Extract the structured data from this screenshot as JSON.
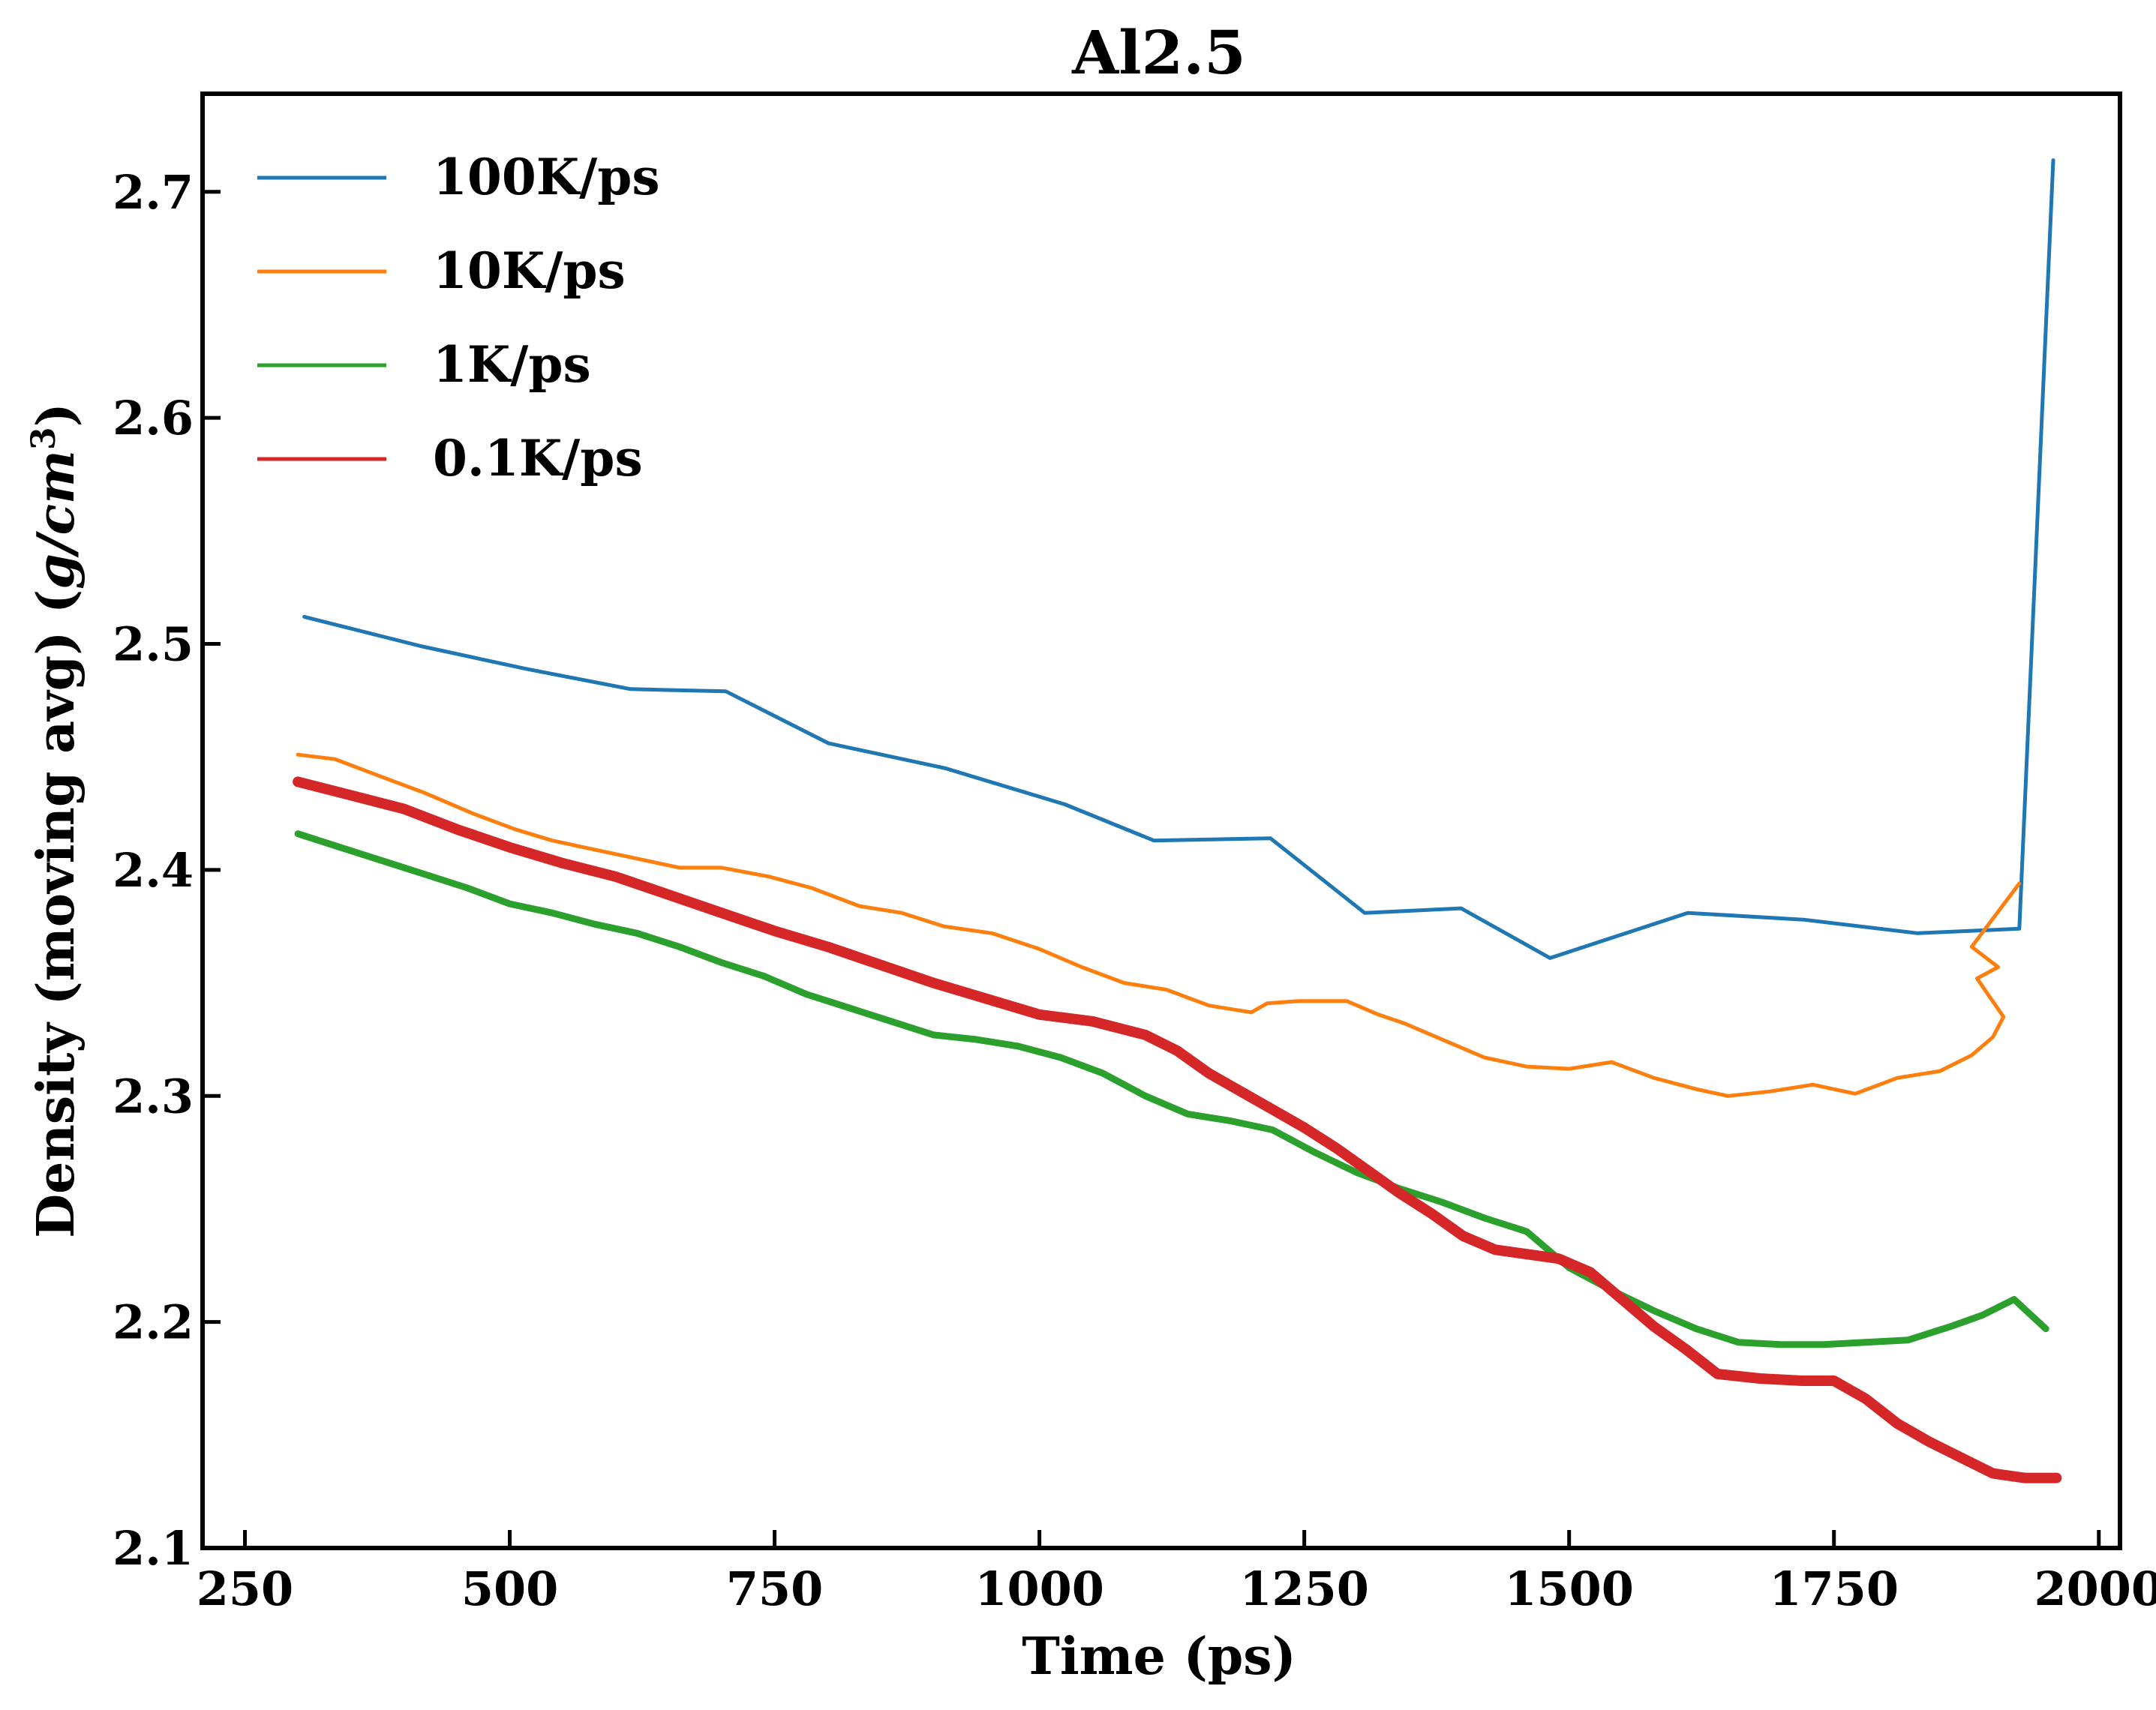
{
  "chart_data": {
    "type": "line",
    "title": "Al2.5",
    "xlabel": "Time (ps)",
    "ylabel_prefix": "Density (moving avg) (",
    "ylabel_unit_base": "g/cm",
    "ylabel_unit_exp": "3",
    "ylabel_suffix": ")",
    "xlim": [
      210,
      2020
    ],
    "ylim": [
      2.1,
      2.7434
    ],
    "xticks": [
      250,
      500,
      750,
      1000,
      1250,
      1500,
      1750,
      2000
    ],
    "xtick_labels": [
      "250",
      "500",
      "750",
      "1000",
      "1250",
      "1500",
      "1750",
      "2000"
    ],
    "yticks": [
      2.1,
      2.2,
      2.3,
      2.4,
      2.5,
      2.6,
      2.7
    ],
    "ytick_labels": [
      "2.1",
      "2.2",
      "2.3",
      "2.4",
      "2.5",
      "2.6",
      "2.7"
    ],
    "grid": false,
    "legend_position": "top-left",
    "series": [
      {
        "name": "100K/ps",
        "color": "#1f77b4",
        "x": [
          306,
          416,
          515,
          614,
          704,
          801,
          911,
          1024,
          1108,
          1218,
          1307,
          1398,
          1482,
          1612,
          1721,
          1829,
          1925,
          1957
        ],
        "y": [
          2.512,
          2.499,
          2.489,
          2.48,
          2.479,
          2.456,
          2.445,
          2.429,
          2.413,
          2.414,
          2.381,
          2.383,
          2.361,
          2.381,
          2.378,
          2.372,
          2.374,
          2.714
        ]
      },
      {
        "name": "10K/ps",
        "color": "#ff7f0e",
        "x": [
          300,
          335,
          380,
          420,
          465,
          505,
          540,
          580,
          620,
          660,
          700,
          745,
          785,
          830,
          870,
          910,
          955,
          1000,
          1040,
          1080,
          1120,
          1160,
          1200,
          1215,
          1245,
          1290,
          1320,
          1345,
          1380,
          1420,
          1460,
          1500,
          1540,
          1580,
          1620,
          1650,
          1690,
          1730,
          1770,
          1810,
          1850,
          1880,
          1900,
          1910,
          1885,
          1905,
          1880,
          1925
        ],
        "y": [
          2.451,
          2.449,
          2.441,
          2.434,
          2.425,
          2.418,
          2.413,
          2.409,
          2.405,
          2.401,
          2.401,
          2.397,
          2.392,
          2.384,
          2.381,
          2.375,
          2.372,
          2.365,
          2.357,
          2.35,
          2.347,
          2.34,
          2.337,
          2.341,
          2.342,
          2.342,
          2.336,
          2.332,
          2.325,
          2.317,
          2.313,
          2.312,
          2.315,
          2.308,
          2.303,
          2.3,
          2.302,
          2.305,
          2.301,
          2.308,
          2.311,
          2.318,
          2.326,
          2.335,
          2.352,
          2.357,
          2.366,
          2.394
        ]
      },
      {
        "name": "1K/ps",
        "color": "#2ca02c",
        "x": [
          300,
          340,
          380,
          420,
          460,
          500,
          540,
          580,
          620,
          660,
          700,
          740,
          780,
          820,
          860,
          900,
          940,
          980,
          1020,
          1060,
          1100,
          1140,
          1180,
          1220,
          1260,
          1300,
          1340,
          1380,
          1420,
          1460,
          1500,
          1540,
          1580,
          1620,
          1660,
          1700,
          1740,
          1780,
          1820,
          1860,
          1890,
          1920,
          1950
        ],
        "y": [
          2.416,
          2.41,
          2.404,
          2.398,
          2.392,
          2.385,
          2.381,
          2.376,
          2.372,
          2.366,
          2.359,
          2.353,
          2.345,
          2.339,
          2.333,
          2.327,
          2.325,
          2.322,
          2.317,
          2.31,
          2.3,
          2.292,
          2.289,
          2.285,
          2.275,
          2.266,
          2.259,
          2.253,
          2.246,
          2.24,
          2.224,
          2.214,
          2.205,
          2.197,
          2.191,
          2.19,
          2.19,
          2.191,
          2.192,
          2.198,
          2.203,
          2.21,
          2.197
        ]
      },
      {
        "name": "0.1K/ps",
        "color": "#d62728",
        "x": [
          300,
          350,
          400,
          450,
          500,
          550,
          600,
          650,
          700,
          750,
          800,
          850,
          900,
          950,
          1000,
          1050,
          1100,
          1130,
          1160,
          1190,
          1220,
          1250,
          1280,
          1310,
          1340,
          1370,
          1400,
          1430,
          1460,
          1490,
          1520,
          1550,
          1580,
          1610,
          1640,
          1680,
          1720,
          1750,
          1780,
          1810,
          1840,
          1870,
          1900,
          1930,
          1960
        ],
        "y": [
          2.439,
          2.433,
          2.427,
          2.418,
          2.41,
          2.403,
          2.397,
          2.389,
          2.381,
          2.373,
          2.366,
          2.358,
          2.35,
          2.343,
          2.336,
          2.333,
          2.327,
          2.32,
          2.31,
          2.302,
          2.294,
          2.286,
          2.277,
          2.267,
          2.257,
          2.248,
          2.238,
          2.232,
          2.23,
          2.228,
          2.222,
          2.21,
          2.198,
          2.188,
          2.177,
          2.175,
          2.174,
          2.174,
          2.166,
          2.155,
          2.147,
          2.14,
          2.133,
          2.131,
          2.131
        ]
      }
    ]
  }
}
